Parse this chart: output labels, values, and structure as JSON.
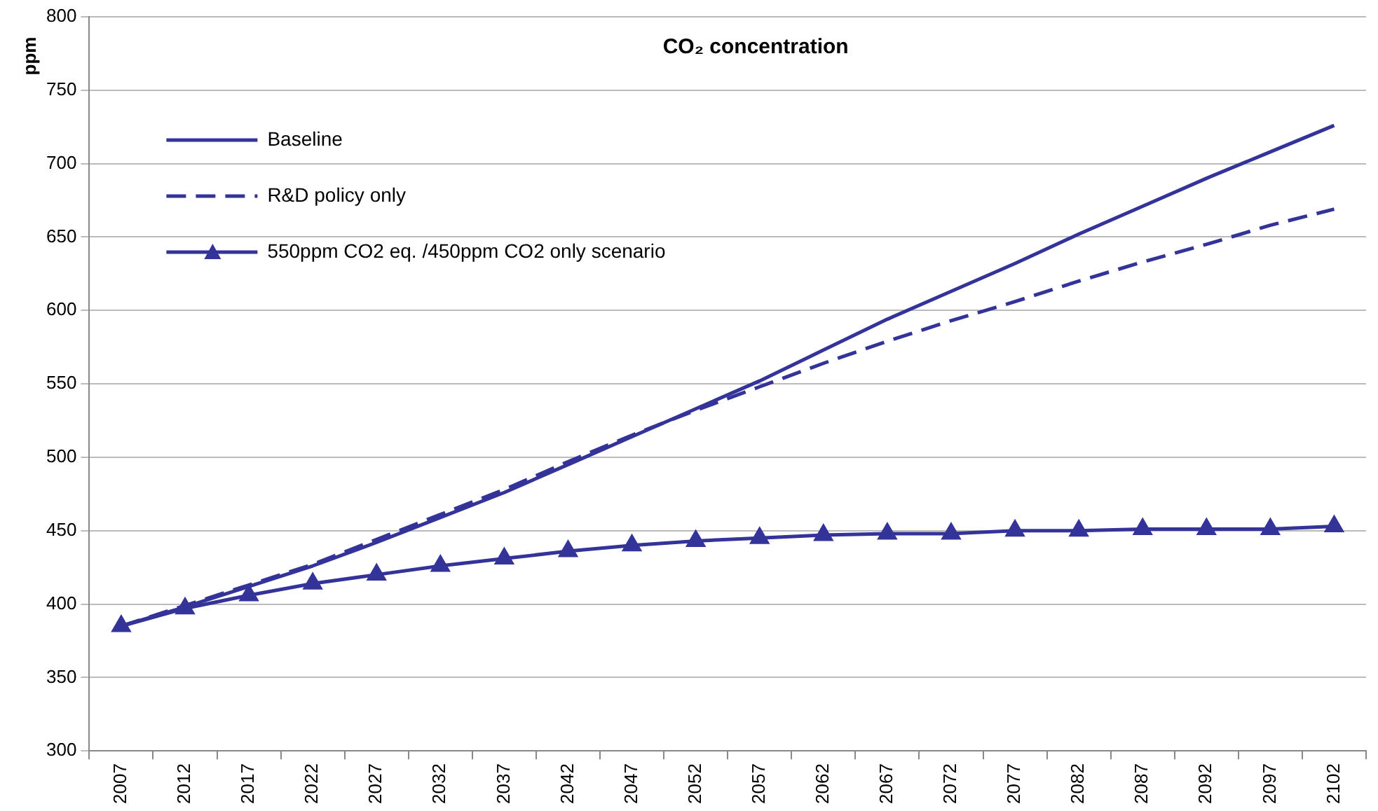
{
  "chart_data": {
    "type": "line",
    "title": "CO₂ concentration",
    "ylabel": "ppm",
    "categories": [
      "2007",
      "2012",
      "2017",
      "2022",
      "2027",
      "2032",
      "2037",
      "2042",
      "2047",
      "2052",
      "2057",
      "2062",
      "2067",
      "2072",
      "2077",
      "2082",
      "2087",
      "2092",
      "2097",
      "2102"
    ],
    "series": [
      {
        "name": "Baseline",
        "color": "#333399",
        "line_style": "solid",
        "marker": "none",
        "values": [
          385,
          398,
          412,
          426,
          442,
          459,
          476,
          495,
          514,
          533,
          552,
          573,
          594,
          613,
          632,
          652,
          671,
          690,
          708,
          726
        ]
      },
      {
        "name": "R&D policy only",
        "color": "#333399",
        "line_style": "dashed",
        "marker": "none",
        "values": [
          385,
          399,
          413,
          427,
          444,
          461,
          478,
          497,
          515,
          532,
          548,
          564,
          579,
          593,
          606,
          620,
          633,
          645,
          658,
          669
        ]
      },
      {
        "name": "550ppm CO2 eq. /450ppm CO2 only scenario",
        "color": "#333399",
        "line_style": "solid",
        "marker": "triangle",
        "values": [
          385,
          397,
          406,
          414,
          420,
          426,
          431,
          436,
          440,
          443,
          445,
          447,
          448,
          448,
          450,
          450,
          451,
          451,
          451,
          453
        ]
      }
    ],
    "ylim": [
      300,
      800
    ],
    "yticks": [
      300,
      350,
      400,
      450,
      500,
      550,
      600,
      650,
      700,
      750,
      800
    ],
    "grid": "y",
    "legend": "top left"
  }
}
